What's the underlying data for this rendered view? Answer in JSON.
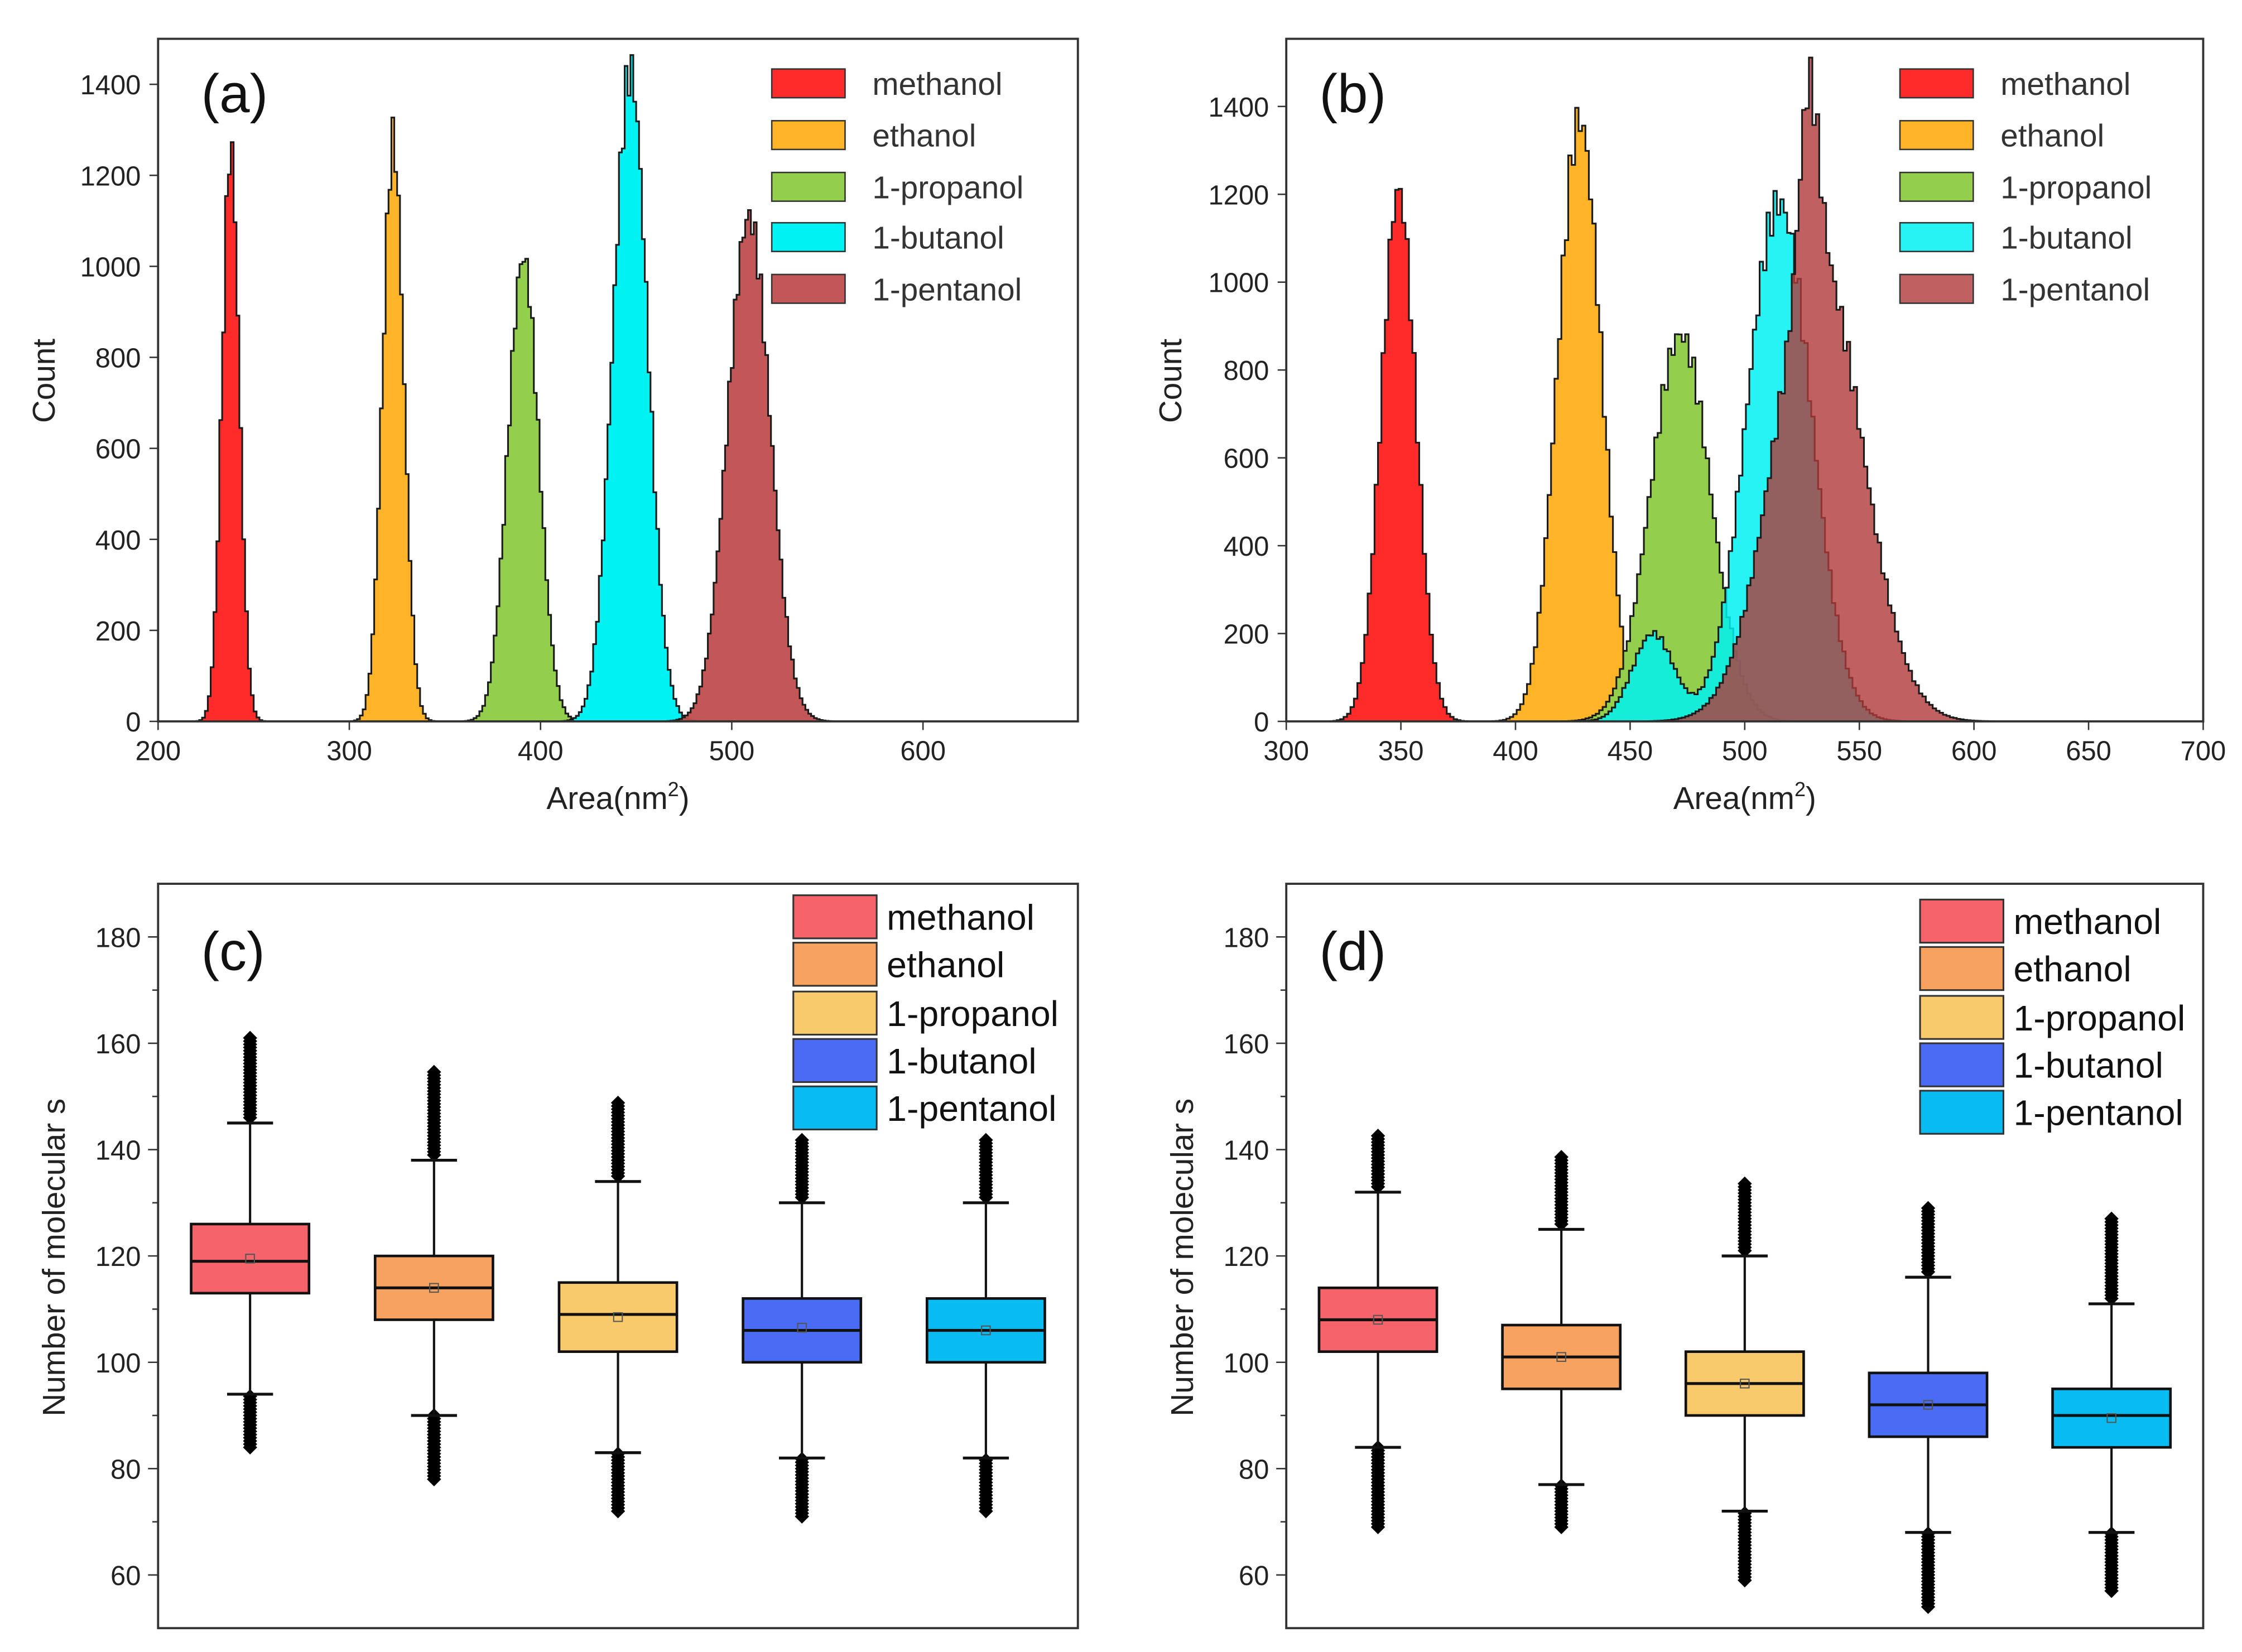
{
  "chart_data": [
    {
      "type": "histogram",
      "panel_label": "(a)",
      "xlabel": "Area(nm",
      "xlabel_sup": "2",
      "xlabel_end": ")",
      "ylabel": "Count",
      "xlim": [
        200,
        681
      ],
      "ylim": [
        0,
        1500
      ],
      "xticks": [
        200,
        300,
        400,
        500,
        600
      ],
      "yticks": [
        0,
        200,
        400,
        600,
        800,
        1000,
        1200,
        1400
      ],
      "legend_position": "top-right",
      "series": [
        {
          "name": "methanol",
          "color": "#ff2b2b",
          "opacity": 1,
          "components": [
            {
              "mean": 238,
              "sd": 4.5,
              "peak": 1260
            }
          ]
        },
        {
          "name": "ethanol",
          "color": "#ffb427",
          "opacity": 1,
          "components": [
            {
              "mean": 323,
              "sd": 5.5,
              "peak": 1280
            }
          ]
        },
        {
          "name": "1-propanol",
          "color": "#93cf4c",
          "opacity": 1,
          "components": [
            {
              "mean": 391,
              "sd": 8,
              "peak": 1020
            }
          ]
        },
        {
          "name": "1-butanol",
          "color": "#00f2f2",
          "opacity": 1,
          "components": [
            {
              "mean": 447,
              "sd": 9,
              "peak": 1430
            }
          ]
        },
        {
          "name": "1-pentanol",
          "color": "#c04d4d",
          "opacity": 0.95,
          "components": [
            {
              "mean": 509,
              "sd": 11,
              "peak": 1110
            }
          ]
        }
      ]
    },
    {
      "type": "histogram",
      "panel_label": "(b)",
      "xlabel": "Area(nm",
      "xlabel_sup": "2",
      "xlabel_end": ")",
      "ylabel": "Count",
      "xlim": [
        300,
        700
      ],
      "ylim": [
        0,
        1554
      ],
      "xticks": [
        300,
        350,
        400,
        450,
        500,
        550,
        600,
        650,
        700
      ],
      "yticks": [
        0,
        200,
        400,
        600,
        800,
        1000,
        1200,
        1400
      ],
      "legend_position": "top-right",
      "series": [
        {
          "name": "methanol",
          "color": "#ff2b2b",
          "opacity": 1,
          "components": [
            {
              "mean": 349,
              "sd": 7.5,
              "peak": 1210
            }
          ]
        },
        {
          "name": "ethanol",
          "color": "#ffb427",
          "opacity": 1,
          "components": [
            {
              "mean": 428,
              "sd": 9.5,
              "peak": 1370
            }
          ]
        },
        {
          "name": "1-propanol",
          "color": "#93cf4c",
          "opacity": 1,
          "components": [
            {
              "mean": 472,
              "sd": 13,
              "peak": 880
            }
          ]
        },
        {
          "name": "1-butanol",
          "color": "#00f2f2",
          "opacity": 0.85,
          "components": [
            {
              "mean": 460,
              "sd": 9,
              "peak": 200
            },
            {
              "mean": 515,
              "sd": 14,
              "peak": 1180
            }
          ]
        },
        {
          "name": "1-pentanol",
          "color": "#b03a3a",
          "opacity": 0.8,
          "components": [
            {
              "mean": 528,
              "sd": 4,
              "peak": 420
            },
            {
              "mean": 532,
              "sd": 19,
              "peak": 1060
            }
          ]
        }
      ]
    },
    {
      "type": "box",
      "panel_label": "(c)",
      "ylabel": "Number of molecular s",
      "ylim": [
        50,
        190
      ],
      "yticks": [
        60,
        80,
        100,
        120,
        140,
        160,
        180
      ],
      "legend_position": "top-right",
      "series": [
        {
          "name": "methanol",
          "color": "#f4646a",
          "q1": 113,
          "median": 119,
          "q3": 126,
          "mean": 119.5,
          "whisker_low": 94,
          "whisker_high": 145,
          "min": 84,
          "max": 161
        },
        {
          "name": "ethanol",
          "color": "#f7a25e",
          "q1": 108,
          "median": 114,
          "q3": 120,
          "mean": 114,
          "whisker_low": 90,
          "whisker_high": 138,
          "min": 78,
          "max": 155
        },
        {
          "name": "1-propanol",
          "color": "#f8ca6c",
          "q1": 102,
          "median": 109,
          "q3": 115,
          "mean": 108.5,
          "whisker_low": 83,
          "whisker_high": 134,
          "min": 72,
          "max": 149
        },
        {
          "name": "1-butanol",
          "color": "#4a6cf4",
          "q1": 100,
          "median": 106,
          "q3": 112,
          "mean": 106.5,
          "whisker_low": 82,
          "whisker_high": 130,
          "min": 71,
          "max": 142
        },
        {
          "name": "1-pentanol",
          "color": "#08bcf2",
          "q1": 100,
          "median": 106,
          "q3": 112,
          "mean": 106,
          "whisker_low": 82,
          "whisker_high": 130,
          "min": 72,
          "max": 142
        }
      ]
    },
    {
      "type": "box",
      "panel_label": "(d)",
      "ylabel": "Number of molecular s",
      "ylim": [
        50,
        190
      ],
      "yticks": [
        60,
        80,
        100,
        120,
        140,
        160,
        180
      ],
      "legend_position": "top-right",
      "series": [
        {
          "name": "methanol",
          "color": "#f4646a",
          "q1": 102,
          "median": 108,
          "q3": 114,
          "mean": 108,
          "whisker_low": 84,
          "whisker_high": 132,
          "min": 69,
          "max": 143
        },
        {
          "name": "ethanol",
          "color": "#f7a25e",
          "q1": 95,
          "median": 101,
          "q3": 107,
          "mean": 101,
          "whisker_low": 77,
          "whisker_high": 125,
          "min": 69,
          "max": 139
        },
        {
          "name": "1-propanol",
          "color": "#f8ca6c",
          "q1": 90,
          "median": 96,
          "q3": 102,
          "mean": 96,
          "whisker_low": 72,
          "whisker_high": 120,
          "min": 59,
          "max": 134
        },
        {
          "name": "1-butanol",
          "color": "#4a6cf4",
          "q1": 86,
          "median": 92,
          "q3": 98,
          "mean": 92,
          "whisker_low": 68,
          "whisker_high": 116,
          "min": 54,
          "max": 129
        },
        {
          "name": "1-pentanol",
          "color": "#08bcf2",
          "q1": 84,
          "median": 90,
          "q3": 95,
          "mean": 89.5,
          "whisker_low": 68,
          "whisker_high": 111,
          "min": 57,
          "max": 127
        }
      ]
    }
  ]
}
